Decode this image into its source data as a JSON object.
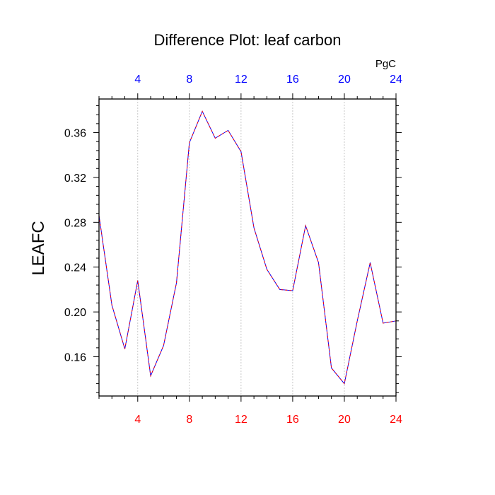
{
  "chart_data": {
    "type": "line",
    "title": "Difference Plot: leaf carbon",
    "units_label": "PgC",
    "ylabel": "LEAFC",
    "xlabel": "",
    "xlim": [
      1,
      24
    ],
    "ylim": [
      0.125,
      0.39
    ],
    "x_ticks": [
      4,
      8,
      12,
      16,
      20,
      24
    ],
    "y_ticks": [
      0.16,
      0.2,
      0.24,
      0.28,
      0.32,
      0.36
    ],
    "y_tick_labels": [
      "0.16",
      "0.20",
      "0.24",
      "0.28",
      "0.32",
      "0.36"
    ],
    "bottom_axis_color": "#ff0000",
    "top_axis_color": "#0000ff",
    "line_colors": [
      "#0000ff",
      "#ff0000"
    ],
    "grid": "vertical dashed at major x ticks",
    "series": [
      {
        "x": [
          1,
          2,
          3,
          4,
          5,
          6,
          7,
          8,
          9,
          10,
          11,
          12,
          13,
          14,
          15,
          16,
          17,
          18,
          19,
          20,
          21,
          22,
          23,
          24
        ],
        "values": [
          0.286,
          0.206,
          0.167,
          0.228,
          0.143,
          0.17,
          0.226,
          0.351,
          0.379,
          0.355,
          0.362,
          0.343,
          0.275,
          0.238,
          0.22,
          0.219,
          0.277,
          0.244,
          0.15,
          0.136,
          0.192,
          0.244,
          0.19,
          0.192
        ]
      }
    ]
  }
}
